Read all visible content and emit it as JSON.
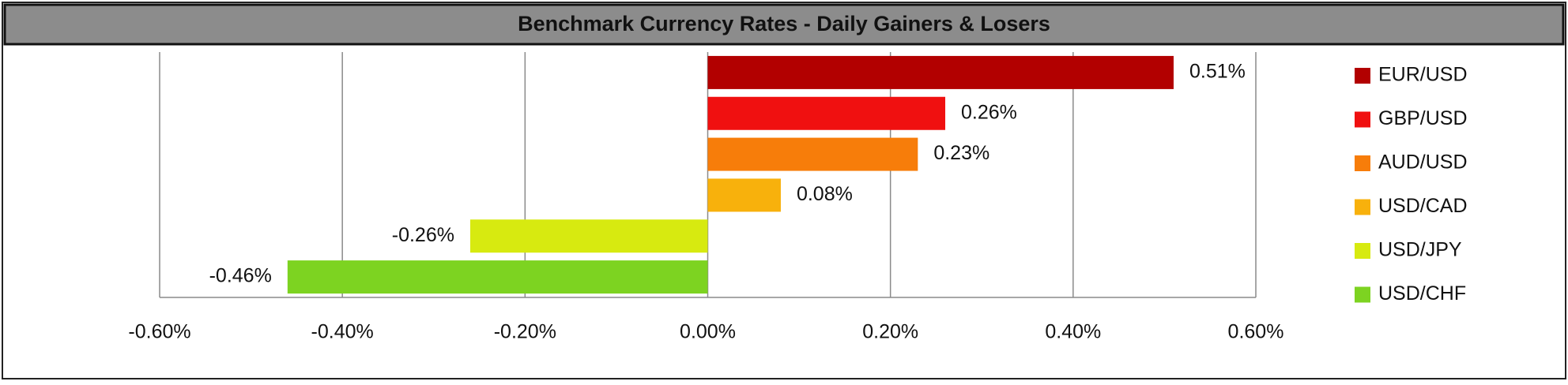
{
  "chart_data": {
    "type": "hbar",
    "title": "Benchmark Currency Rates - Daily Gainers & Losers",
    "categories": [
      "EUR/USD",
      "GBP/USD",
      "AUD/USD",
      "USD/CAD",
      "USD/JPY",
      "USD/CHF"
    ],
    "values": [
      0.51,
      0.26,
      0.23,
      0.08,
      -0.26,
      -0.46
    ],
    "value_labels": [
      "0.51%",
      "0.26%",
      "0.23%",
      "0.08%",
      "-0.26%",
      "-0.46%"
    ],
    "colors": [
      "#b20000",
      "#f01010",
      "#f77d0a",
      "#f8b10c",
      "#d7ea10",
      "#7dd321"
    ],
    "xlim": [
      -0.6,
      0.6
    ],
    "xticks": [
      {
        "value": -0.6,
        "label": "-0.60%"
      },
      {
        "value": -0.4,
        "label": "-0.40%"
      },
      {
        "value": -0.2,
        "label": "-0.20%"
      },
      {
        "value": 0,
        "label": "0.00%"
      },
      {
        "value": 0.2,
        "label": "0.20%"
      },
      {
        "value": 0.4,
        "label": "0.40%"
      },
      {
        "value": 0.6,
        "label": "0.60%"
      }
    ],
    "grid": true,
    "legend": "right"
  }
}
